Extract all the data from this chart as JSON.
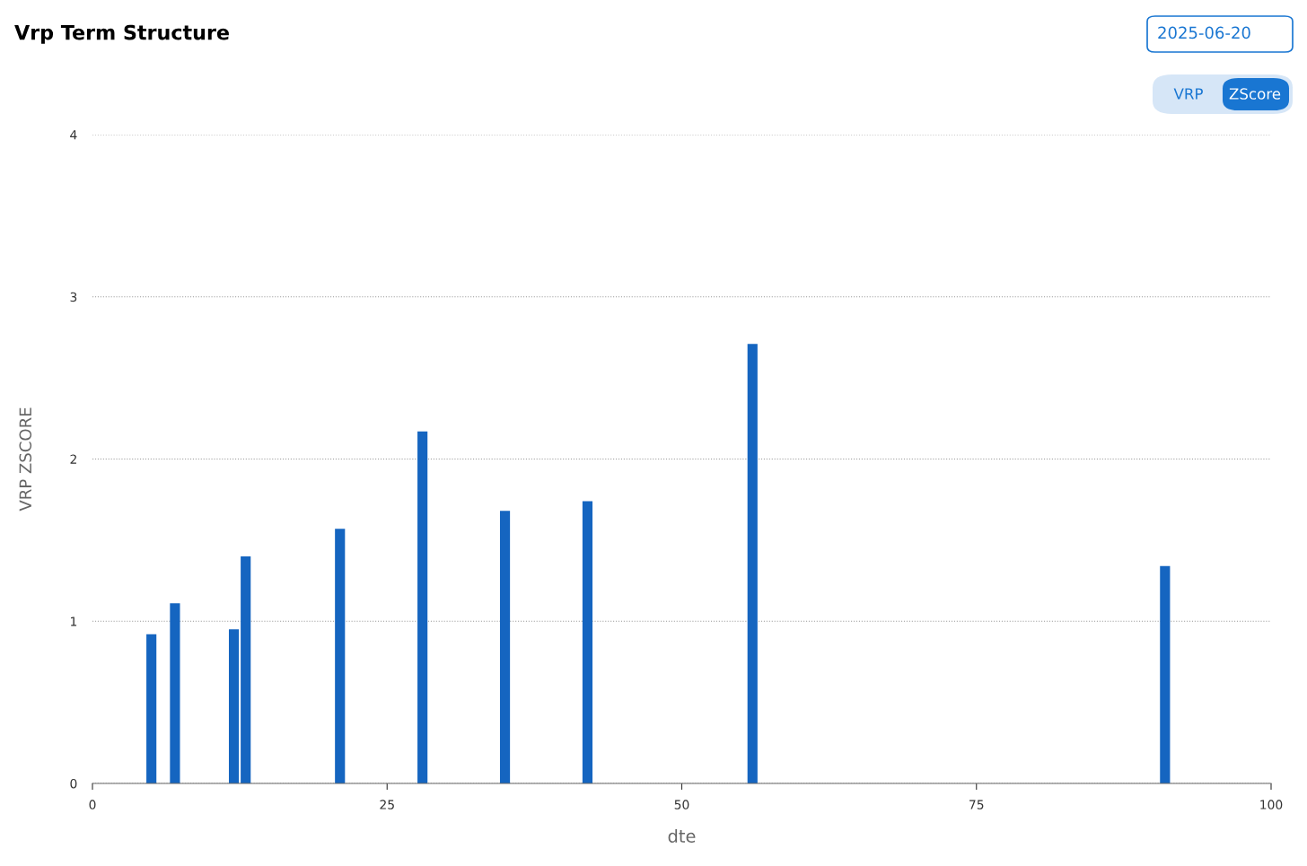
{
  "chart_data": {
    "type": "bar",
    "title": "Vrp Term Structure",
    "xlabel": "dte",
    "ylabel": "VRP ZSCORE",
    "x": [
      5,
      7,
      12,
      13,
      21,
      28,
      35,
      42,
      56,
      91
    ],
    "series": [
      {
        "color": "#1565c0",
        "values": [
          0.92,
          1.11,
          0.95,
          1.4,
          1.57,
          2.17,
          1.68,
          1.74,
          2.71,
          1.34
        ]
      }
    ],
    "xlim": [
      0,
      100
    ],
    "xticks": [
      0,
      25,
      50,
      75,
      100
    ],
    "ylim": [
      0,
      4
    ],
    "yticks": [
      0,
      1,
      2,
      3,
      4
    ],
    "grid": "y",
    "line_style": "dotted",
    "annotations": [
      "2025-06-20",
      "VRP",
      "ZScore"
    ]
  }
}
